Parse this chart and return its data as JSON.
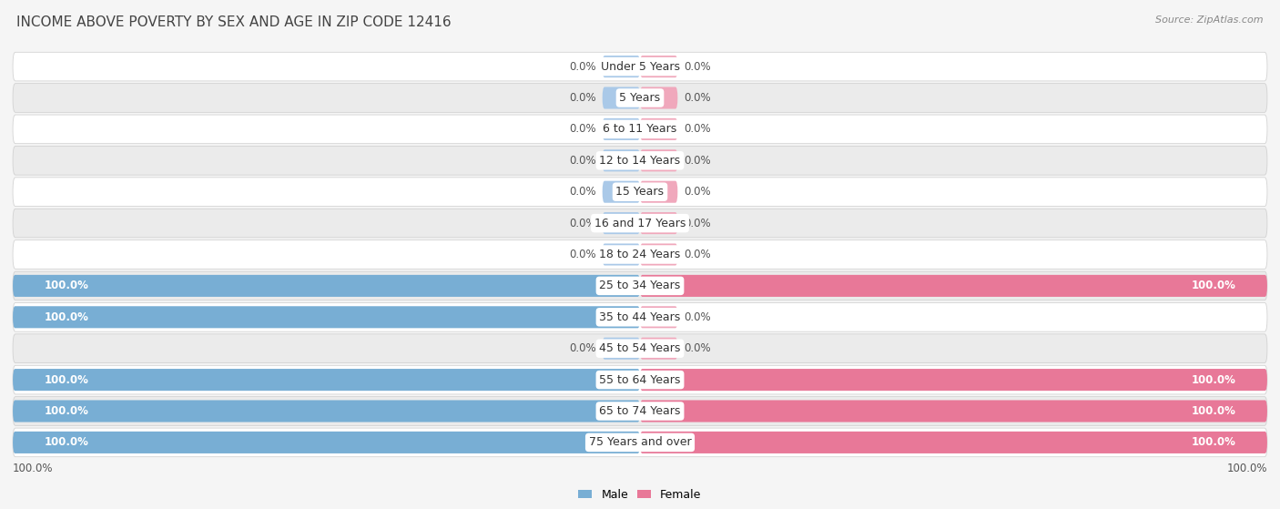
{
  "title": "INCOME ABOVE POVERTY BY SEX AND AGE IN ZIP CODE 12416",
  "source": "Source: ZipAtlas.com",
  "categories": [
    "Under 5 Years",
    "5 Years",
    "6 to 11 Years",
    "12 to 14 Years",
    "15 Years",
    "16 and 17 Years",
    "18 to 24 Years",
    "25 to 34 Years",
    "35 to 44 Years",
    "45 to 54 Years",
    "55 to 64 Years",
    "65 to 74 Years",
    "75 Years and over"
  ],
  "male_values": [
    0.0,
    0.0,
    0.0,
    0.0,
    0.0,
    0.0,
    0.0,
    100.0,
    100.0,
    0.0,
    100.0,
    100.0,
    100.0
  ],
  "female_values": [
    0.0,
    0.0,
    0.0,
    0.0,
    0.0,
    0.0,
    0.0,
    100.0,
    0.0,
    0.0,
    100.0,
    100.0,
    100.0
  ],
  "male_color_light": "#aac9e8",
  "female_color_light": "#f0a8bc",
  "male_color_full": "#78aed4",
  "female_color_full": "#e87898",
  "male_label": "Male",
  "female_label": "Female",
  "bg_color": "#f5f5f5",
  "row_color_odd": "#ffffff",
  "row_color_even": "#ebebeb",
  "title_fontsize": 11,
  "label_fontsize": 9,
  "value_fontsize": 8.5,
  "source_fontsize": 8,
  "max_value": 100.0,
  "small_bar_pct": 6.0
}
